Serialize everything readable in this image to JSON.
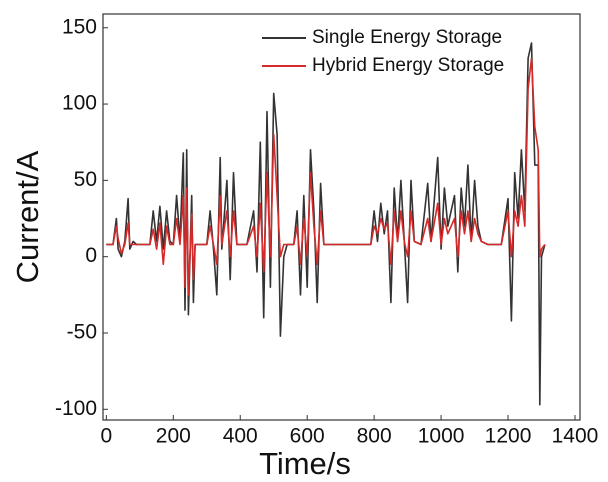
{
  "chart_data": {
    "type": "line",
    "x_label": "Time/s",
    "y_label": "Current/A",
    "x": [
      0,
      20,
      30,
      35,
      45,
      55,
      65,
      70,
      80,
      90,
      130,
      140,
      150,
      160,
      170,
      180,
      190,
      200,
      210,
      220,
      230,
      235,
      240,
      245,
      255,
      260,
      265,
      300,
      310,
      320,
      330,
      340,
      345,
      360,
      370,
      380,
      390,
      420,
      440,
      450,
      460,
      470,
      480,
      490,
      500,
      510,
      520,
      530,
      540,
      560,
      570,
      580,
      590,
      600,
      610,
      620,
      630,
      640,
      650,
      790,
      800,
      810,
      820,
      830,
      840,
      850,
      860,
      870,
      880,
      890,
      900,
      910,
      920,
      940,
      960,
      970,
      990,
      1000,
      1010,
      1020,
      1040,
      1050,
      1060,
      1070,
      1080,
      1090,
      1100,
      1110,
      1120,
      1140,
      1180,
      1200,
      1210,
      1220,
      1230,
      1240,
      1250,
      1260,
      1270,
      1280,
      1290,
      1295,
      1300,
      1310
    ],
    "series": [
      {
        "name": "Single Energy Storage",
        "color": "#333333",
        "values": [
          8,
          8,
          25,
          5,
          0,
          10,
          38,
          5,
          10,
          8,
          8,
          30,
          10,
          33,
          5,
          30,
          10,
          8,
          40,
          10,
          68,
          -35,
          70,
          -38,
          40,
          -30,
          8,
          8,
          30,
          5,
          -25,
          65,
          5,
          50,
          -15,
          55,
          8,
          8,
          30,
          -10,
          75,
          -40,
          95,
          -20,
          107,
          80,
          -52,
          0,
          8,
          8,
          30,
          -25,
          40,
          -20,
          70,
          30,
          -30,
          48,
          8,
          8,
          30,
          10,
          35,
          15,
          30,
          -30,
          45,
          10,
          50,
          10,
          -30,
          50,
          10,
          8,
          48,
          10,
          65,
          5,
          45,
          20,
          40,
          -10,
          45,
          20,
          60,
          10,
          50,
          20,
          10,
          8,
          8,
          38,
          -42,
          55,
          25,
          70,
          30,
          130,
          140,
          60,
          60,
          -97,
          0,
          8
        ]
      },
      {
        "name": "Hybrid Energy Storage",
        "color": "#d42a2a",
        "values": [
          8,
          8,
          20,
          12,
          2,
          8,
          22,
          8,
          8,
          8,
          8,
          18,
          5,
          22,
          -5,
          20,
          8,
          8,
          25,
          8,
          40,
          -20,
          45,
          -25,
          28,
          -15,
          8,
          8,
          20,
          8,
          -5,
          40,
          8,
          30,
          0,
          30,
          8,
          8,
          20,
          0,
          35,
          -10,
          55,
          0,
          80,
          40,
          0,
          8,
          8,
          8,
          20,
          -5,
          25,
          0,
          55,
          20,
          -5,
          30,
          8,
          8,
          20,
          15,
          25,
          18,
          22,
          -5,
          30,
          10,
          30,
          10,
          0,
          30,
          10,
          8,
          25,
          10,
          35,
          8,
          25,
          15,
          25,
          0,
          30,
          15,
          30,
          10,
          25,
          15,
          10,
          8,
          8,
          30,
          0,
          30,
          20,
          40,
          20,
          110,
          130,
          85,
          70,
          0,
          5,
          8
        ]
      }
    ],
    "xlim": [
      -10,
      1415
    ],
    "ylim": [
      -107,
      159
    ],
    "xticks": [
      0,
      200,
      400,
      600,
      800,
      1000,
      1200,
      1400
    ],
    "yticks": [
      -100,
      -50,
      0,
      50,
      100,
      150
    ],
    "legend": "upper right"
  }
}
